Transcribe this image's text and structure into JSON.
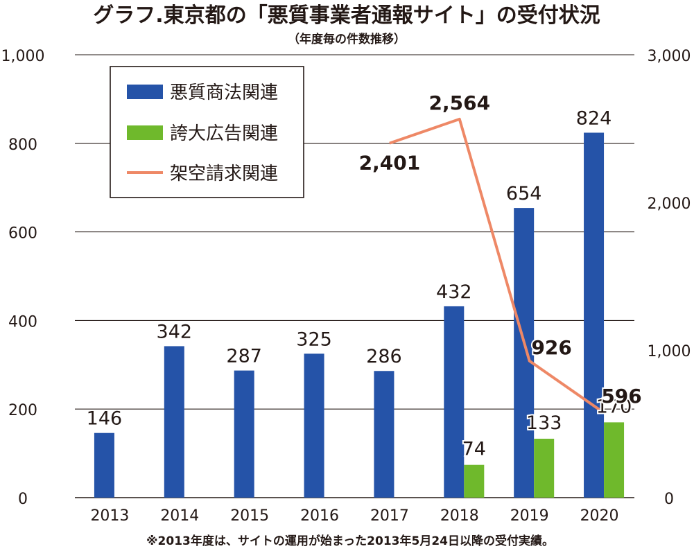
{
  "chart_data": {
    "type": "bar+line",
    "title": "グラフ.東京都の「悪質事業者通報サイト」の受付状況",
    "subtitle": "（年度毎の件数推移）",
    "categories": [
      "2013",
      "2014",
      "2015",
      "2016",
      "2017",
      "2018",
      "2019",
      "2020"
    ],
    "left_axis": {
      "range": [
        0,
        1000
      ],
      "ticks": [
        "0",
        "200",
        "400",
        "600",
        "800",
        "1,000"
      ],
      "tick_values": [
        0,
        200,
        400,
        600,
        800,
        1000
      ]
    },
    "right_axis": {
      "range": [
        0,
        3000
      ],
      "ticks": [
        "0",
        "1,000",
        "2,000",
        "3,000"
      ],
      "tick_values": [
        0,
        1000,
        2000,
        3000
      ]
    },
    "grid": true,
    "legend_position": "top-left",
    "series": [
      {
        "name": "悪質商法関連",
        "type": "bar",
        "axis": "left",
        "color": "#2553a8",
        "values": [
          146,
          342,
          287,
          325,
          286,
          432,
          654,
          824
        ],
        "labels": [
          "146",
          "342",
          "287",
          "325",
          "286",
          "432",
          "654",
          "824"
        ]
      },
      {
        "name": "誇大広告関連",
        "type": "bar",
        "axis": "left",
        "color": "#6fb92c",
        "values": [
          null,
          null,
          null,
          null,
          null,
          74,
          133,
          170
        ],
        "labels": [
          "",
          "",
          "",
          "",
          "",
          "74",
          "133",
          "170"
        ]
      },
      {
        "name": "架空請求関連",
        "type": "line",
        "axis": "right",
        "color": "#ee8866",
        "values": [
          null,
          null,
          null,
          null,
          2401,
          2564,
          926,
          596
        ],
        "labels": [
          "",
          "",
          "",
          "",
          "2,401",
          "2,564",
          "926",
          "596"
        ]
      }
    ],
    "footnote": "※2013年度は、サイトの運用が始まった2013年5月24日以降の受付実績。"
  }
}
